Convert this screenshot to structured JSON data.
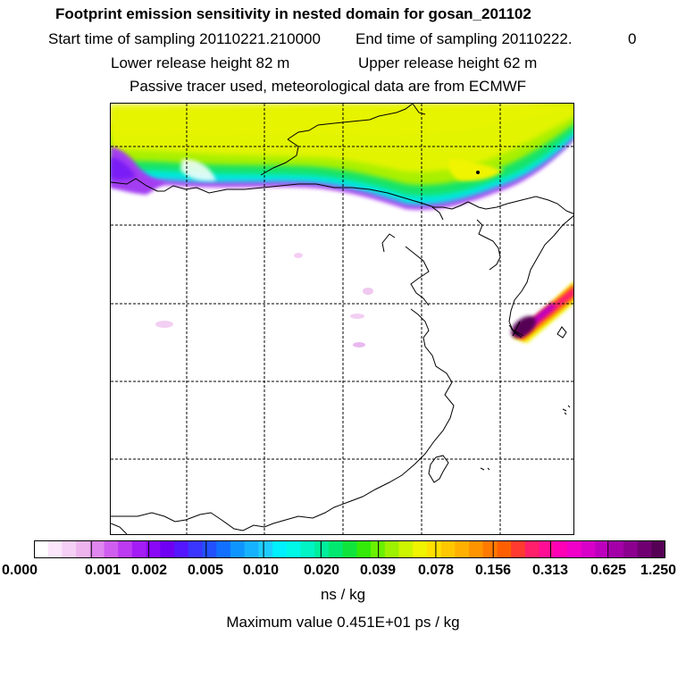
{
  "header": {
    "title": "Footprint emission sensitivity in nested domain for gosan_201102",
    "start_time": "Start time of sampling 20110221.210000",
    "end_time": "End time of sampling 20110222.",
    "end_time_suffix": "0",
    "lower_height": "Lower release height   82 m",
    "upper_height": "Upper release height   62 m",
    "tracer_note": "Passive tracer used, meteorological data are from ECMWF"
  },
  "colorbar": {
    "units": "ns / kg",
    "tick_labels": [
      "0.000",
      "0.001",
      "0.002",
      "0.005",
      "0.010",
      "0.020",
      "0.039",
      "0.078",
      "0.156",
      "0.313",
      "0.625",
      "1.250"
    ],
    "colors": [
      "#ffffff",
      "#fbe6fb",
      "#f5cff5",
      "#eeb4ee",
      "#df86ef",
      "#cf5ef0",
      "#bb3af2",
      "#a31df4",
      "#8a08f5",
      "#6f00f3",
      "#5316ff",
      "#3a35ff",
      "#2250ff",
      "#1170ff",
      "#0f95ff",
      "#17b2ff",
      "#1fcbff",
      "#00f0ff",
      "#00f8e8",
      "#00f4c4",
      "#00ee9c",
      "#00e870",
      "#10e43c",
      "#33ea08",
      "#6af000",
      "#9ef100",
      "#cdf500",
      "#f1f400",
      "#ffe000",
      "#ffc700",
      "#ffb000",
      "#ff9400",
      "#ff7a00",
      "#ff5f00",
      "#ff3a30",
      "#ff1f6a",
      "#ff0e95",
      "#ff00b6",
      "#f000c8",
      "#d800c8",
      "#bd00bd",
      "#a300a8",
      "#8b008f",
      "#700072",
      "#560055"
    ]
  },
  "footer": {
    "max_value": "Maximum value  0.451E+01 ps / kg"
  }
}
